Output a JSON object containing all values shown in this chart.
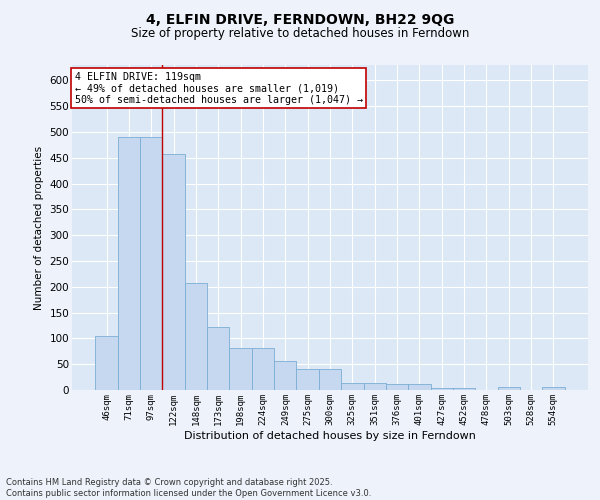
{
  "title": "4, ELFIN DRIVE, FERNDOWN, BH22 9QG",
  "subtitle": "Size of property relative to detached houses in Ferndown",
  "xlabel": "Distribution of detached houses by size in Ferndown",
  "ylabel": "Number of detached properties",
  "footer_line1": "Contains HM Land Registry data © Crown copyright and database right 2025.",
  "footer_line2": "Contains public sector information licensed under the Open Government Licence v3.0.",
  "annotation_title": "4 ELFIN DRIVE: 119sqm",
  "annotation_line1": "← 49% of detached houses are smaller (1,019)",
  "annotation_line2": "50% of semi-detached houses are larger (1,047) →",
  "bar_color": "#c5d8ef",
  "bar_edge_color": "#7aadd4",
  "fig_bg_color": "#eef3fb",
  "axes_bg_color": "#dce8f5",
  "grid_color": "#ffffff",
  "vline_color": "#c00000",
  "vline_x_index": 2.5,
  "categories": [
    "46sqm",
    "71sqm",
    "97sqm",
    "122sqm",
    "148sqm",
    "173sqm",
    "198sqm",
    "224sqm",
    "249sqm",
    "275sqm",
    "300sqm",
    "325sqm",
    "351sqm",
    "376sqm",
    "401sqm",
    "427sqm",
    "452sqm",
    "478sqm",
    "503sqm",
    "528sqm",
    "554sqm"
  ],
  "values": [
    105,
    490,
    490,
    457,
    207,
    122,
    82,
    82,
    57,
    40,
    40,
    13,
    13,
    12,
    12,
    3,
    3,
    0,
    6,
    0,
    6
  ],
  "ylim": [
    0,
    630
  ],
  "yticks": [
    0,
    50,
    100,
    150,
    200,
    250,
    300,
    350,
    400,
    450,
    500,
    550,
    600
  ],
  "annotation_fontsize": 7.2,
  "title_fontsize": 10,
  "subtitle_fontsize": 8.5,
  "xlabel_fontsize": 8,
  "ylabel_fontsize": 7.5,
  "xtick_fontsize": 6.5,
  "ytick_fontsize": 7.5,
  "footer_fontsize": 6
}
